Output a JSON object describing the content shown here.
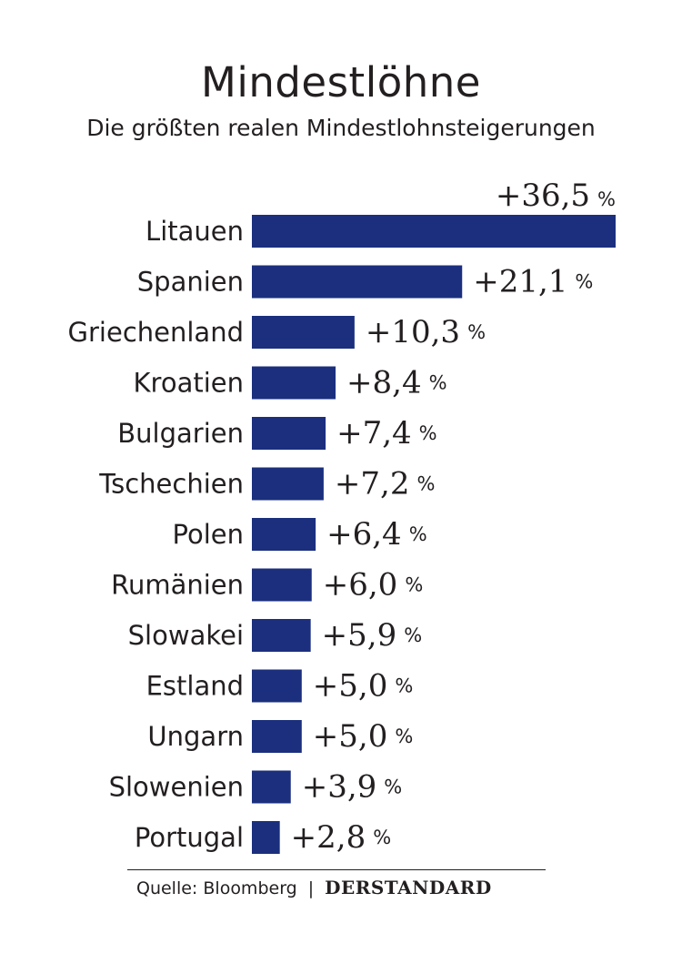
{
  "title": "Mindestlöhne",
  "subtitle": "Die größten realen Mindestlohnsteigerungen",
  "footer": {
    "source": "Quelle: Bloomberg",
    "separator": "|",
    "brand": "DERSTANDARD"
  },
  "colors": {
    "bar": "#1b2f7e",
    "text": "#231f20"
  },
  "chart_data": {
    "type": "bar",
    "orientation": "horizontal",
    "title": "Mindestlöhne",
    "subtitle": "Die größten realen Mindestlohnsteigerungen",
    "categories": [
      "Litauen",
      "Spanien",
      "Griechenland",
      "Kroatien",
      "Bulgarien",
      "Tschechien",
      "Polen",
      "Rumänien",
      "Slowakei",
      "Estland",
      "Ungarn",
      "Slowenien",
      "Portugal"
    ],
    "values": [
      36.5,
      21.1,
      10.3,
      8.4,
      7.4,
      7.2,
      6.4,
      6.0,
      5.9,
      5.0,
      5.0,
      3.9,
      2.8
    ],
    "value_labels": [
      "+36,5",
      "+21,1",
      "+10,3",
      "+8,4",
      "+7,4",
      "+7,2",
      "+6,4",
      "+6,0",
      "+5,9",
      "+5,0",
      "+5,0",
      "+3,9",
      "+2,8"
    ],
    "unit": "%",
    "xlim": [
      0,
      36.5
    ]
  }
}
